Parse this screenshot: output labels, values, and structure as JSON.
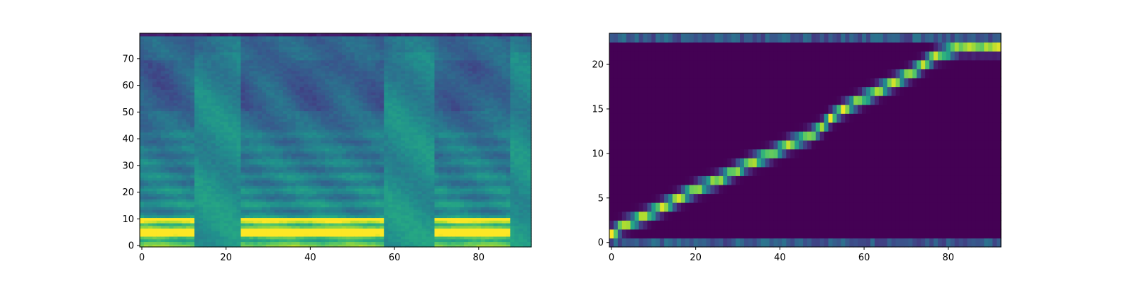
{
  "chart_data": [
    {
      "type": "heatmap",
      "title": "",
      "xlabel": "",
      "ylabel": "",
      "xlim": [
        -0.5,
        92.5
      ],
      "ylim": [
        -0.5,
        79.5
      ],
      "x_ticks": [
        0,
        20,
        40,
        60,
        80
      ],
      "y_ticks": [
        0,
        10,
        20,
        30,
        40,
        50,
        60,
        70
      ],
      "colormap": "viridis",
      "n_cols": 93,
      "n_rows": 80,
      "description_segments": {
        "silence_ranges": [
          [
            13,
            24
          ],
          [
            58,
            70
          ],
          [
            88,
            93
          ]
        ],
        "voiced_ranges": [
          [
            0,
            13
          ],
          [
            24,
            58
          ],
          [
            70,
            88
          ]
        ],
        "low_band_bright_rows": [
          3,
          10
        ]
      }
    },
    {
      "type": "heatmap",
      "title": "",
      "xlabel": "",
      "ylabel": "",
      "xlim": [
        -0.5,
        92.5
      ],
      "ylim": [
        -0.5,
        23.5
      ],
      "x_ticks": [
        0,
        20,
        40,
        60,
        80
      ],
      "y_ticks": [
        0,
        5,
        10,
        15,
        20
      ],
      "colormap": "viridis",
      "n_cols": 93,
      "n_rows": 24,
      "alignment_path": [
        [
          0,
          1
        ],
        [
          3,
          2
        ],
        [
          8,
          3
        ],
        [
          12,
          4
        ],
        [
          16,
          5
        ],
        [
          20,
          6
        ],
        [
          25,
          7
        ],
        [
          29,
          8
        ],
        [
          33,
          9
        ],
        [
          38,
          10
        ],
        [
          42,
          11
        ],
        [
          47,
          12
        ],
        [
          50,
          13
        ],
        [
          52,
          14
        ],
        [
          55,
          15
        ],
        [
          59,
          16
        ],
        [
          63,
          17
        ],
        [
          67,
          18
        ],
        [
          71,
          19
        ],
        [
          74,
          20
        ],
        [
          77,
          21
        ],
        [
          83,
          22
        ],
        [
          92,
          22
        ]
      ]
    }
  ]
}
